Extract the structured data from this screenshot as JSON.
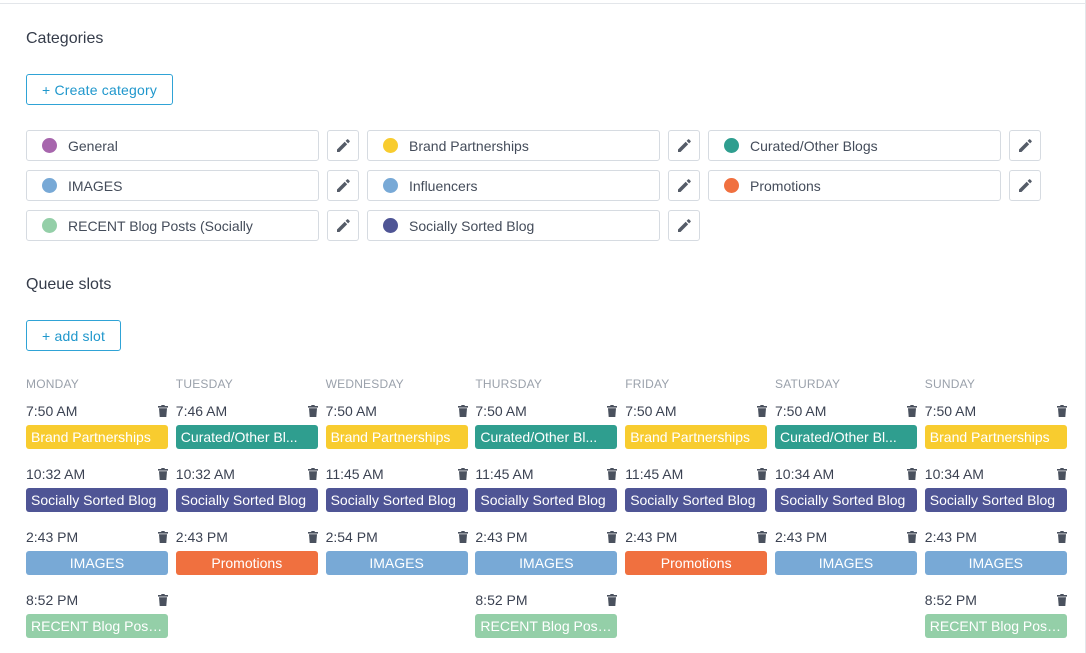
{
  "categories_section": {
    "title": "Categories",
    "create_button": "+ Create category",
    "items": [
      {
        "label": "General",
        "color": "#a766ad"
      },
      {
        "label": "Brand Partnerships",
        "color": "#f8cc2f"
      },
      {
        "label": "Curated/Other Blogs",
        "color": "#2f9e8f"
      },
      {
        "label": "IMAGES",
        "color": "#78a9d6"
      },
      {
        "label": "Influencers",
        "color": "#78a9d6"
      },
      {
        "label": "Promotions",
        "color": "#f0703f"
      },
      {
        "label": "RECENT Blog Posts (Socially",
        "color": "#94cfa8"
      },
      {
        "label": "Socially Sorted Blog",
        "color": "#4f5595"
      }
    ],
    "edit_icon": "pencil-icon"
  },
  "queue_section": {
    "title": "Queue slots",
    "add_button": "+ add slot",
    "trash_icon": "trash-icon",
    "days": [
      {
        "name": "MONDAY",
        "slots": [
          {
            "time": "7:50 AM",
            "tag": "Brand Partnerships",
            "color": "#f8cc2f"
          },
          {
            "time": "10:32 AM",
            "tag": "Socially Sorted Blog",
            "color": "#4f5595"
          },
          {
            "time": "2:43 PM",
            "tag": "IMAGES",
            "color": "#78a9d6"
          },
          {
            "time": "8:52 PM",
            "tag": "RECENT Blog Post...",
            "color": "#94cfa8"
          }
        ]
      },
      {
        "name": "TUESDAY",
        "slots": [
          {
            "time": "7:46 AM",
            "tag": "Curated/Other Bl...",
            "color": "#2f9e8f"
          },
          {
            "time": "10:32 AM",
            "tag": "Socially Sorted Blog",
            "color": "#4f5595"
          },
          {
            "time": "2:43 PM",
            "tag": "Promotions",
            "color": "#f0703f"
          }
        ]
      },
      {
        "name": "WEDNESDAY",
        "slots": [
          {
            "time": "7:50 AM",
            "tag": "Brand Partnerships",
            "color": "#f8cc2f"
          },
          {
            "time": "11:45 AM",
            "tag": "Socially Sorted Blog",
            "color": "#4f5595"
          },
          {
            "time": "2:54 PM",
            "tag": "IMAGES",
            "color": "#78a9d6"
          }
        ]
      },
      {
        "name": "THURSDAY",
        "slots": [
          {
            "time": "7:50 AM",
            "tag": "Curated/Other Bl...",
            "color": "#2f9e8f"
          },
          {
            "time": "11:45 AM",
            "tag": "Socially Sorted Blog",
            "color": "#4f5595"
          },
          {
            "time": "2:43 PM",
            "tag": "IMAGES",
            "color": "#78a9d6"
          },
          {
            "time": "8:52 PM",
            "tag": "RECENT Blog Post...",
            "color": "#94cfa8"
          }
        ]
      },
      {
        "name": "FRIDAY",
        "slots": [
          {
            "time": "7:50 AM",
            "tag": "Brand Partnerships",
            "color": "#f8cc2f"
          },
          {
            "time": "11:45 AM",
            "tag": "Socially Sorted Blog",
            "color": "#4f5595"
          },
          {
            "time": "2:43 PM",
            "tag": "Promotions",
            "color": "#f0703f"
          }
        ]
      },
      {
        "name": "SATURDAY",
        "slots": [
          {
            "time": "7:50 AM",
            "tag": "Curated/Other Bl...",
            "color": "#2f9e8f"
          },
          {
            "time": "10:34 AM",
            "tag": "Socially Sorted Blog",
            "color": "#4f5595"
          },
          {
            "time": "2:43 PM",
            "tag": "IMAGES",
            "color": "#78a9d6"
          }
        ]
      },
      {
        "name": "SUNDAY",
        "slots": [
          {
            "time": "7:50 AM",
            "tag": "Brand Partnerships",
            "color": "#f8cc2f"
          },
          {
            "time": "10:34 AM",
            "tag": "Socially Sorted Blog",
            "color": "#4f5595"
          },
          {
            "time": "2:43 PM",
            "tag": "IMAGES",
            "color": "#78a9d6"
          },
          {
            "time": "8:52 PM",
            "tag": "RECENT Blog Post...",
            "color": "#94cfa8"
          }
        ]
      }
    ]
  }
}
